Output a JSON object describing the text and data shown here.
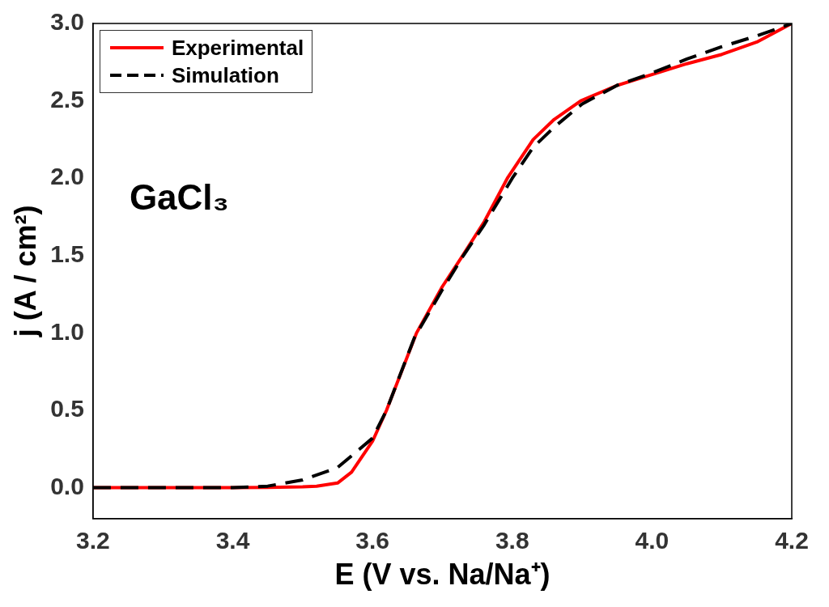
{
  "chart_data": {
    "type": "line",
    "xlabel": "E (V vs. Na/Na⁺)",
    "ylabel": "j (A / cm²)",
    "annotations": [
      "GaCl₃"
    ],
    "xlim": [
      3.2,
      4.2
    ],
    "ylim": [
      -0.2,
      3.0
    ],
    "xticks": [
      3.2,
      3.4,
      3.6,
      3.8,
      {
        "value": 4,
        "label": "4.0"
      },
      4.2
    ],
    "yticks": [
      {
        "value": 0,
        "label": "0.0"
      },
      0.5,
      {
        "value": 1,
        "label": "1.0"
      },
      1.5,
      {
        "value": 2,
        "label": "2.0"
      },
      2.5,
      {
        "value": 3,
        "label": "3.0"
      }
    ],
    "grid": false,
    "legend": "top left",
    "marker": "none",
    "series": [
      {
        "name": "Experimental",
        "color": "#ff0000",
        "line_style": "solid",
        "x": [
          3.2,
          3.3,
          3.4,
          3.45,
          3.5,
          3.52,
          3.55,
          3.57,
          3.6,
          3.62,
          3.663,
          3.7,
          3.729,
          3.76,
          3.793,
          3.83,
          3.86,
          3.898,
          3.95,
          4.0,
          4.05,
          4.1,
          4.15,
          4.2
        ],
        "values": [
          0,
          0,
          0,
          0.002,
          0.005,
          0.01,
          0.03,
          0.1,
          0.3,
          0.5,
          1.0,
          1.3,
          1.5,
          1.72,
          2.0,
          2.25,
          2.38,
          2.5,
          2.6,
          2.67,
          2.74,
          2.8,
          2.88,
          3.0
        ]
      },
      {
        "name": "Simulation",
        "color": "#000000",
        "line_style": "dashed",
        "x": [
          3.2,
          3.3,
          3.4,
          3.45,
          3.5,
          3.55,
          3.6,
          3.62,
          3.66,
          3.7,
          3.73,
          3.76,
          3.8,
          3.83,
          3.86,
          3.9,
          3.95,
          4.0,
          4.05,
          4.1,
          4.15,
          4.2
        ],
        "values": [
          0,
          0,
          0,
          0.01,
          0.05,
          0.13,
          0.32,
          0.5,
          0.97,
          1.28,
          1.5,
          1.7,
          2.0,
          2.2,
          2.33,
          2.48,
          2.6,
          2.68,
          2.77,
          2.85,
          2.92,
          3.0
        ]
      }
    ]
  }
}
